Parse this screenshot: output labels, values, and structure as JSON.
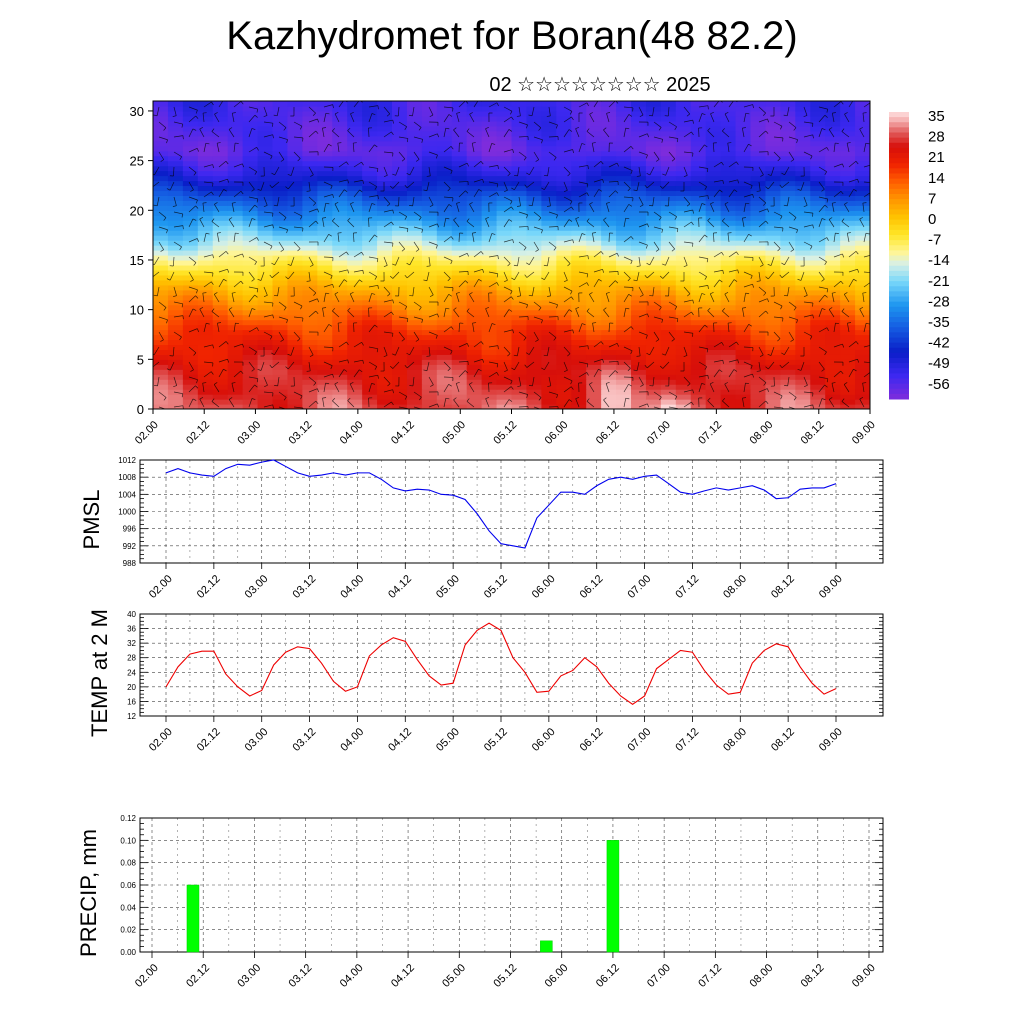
{
  "title": "Kazhydromet for Boran(48 82.2)",
  "subtitle": "02 ☆☆☆☆☆☆☆☆ 2025",
  "x_tick_labels": [
    "02.00",
    "02.12",
    "03.00",
    "03.12",
    "04.00",
    "04.12",
    "05.00",
    "05.12",
    "06.00",
    "06.12",
    "07.00",
    "07.12",
    "08.00",
    "08.12",
    "09.00"
  ],
  "chart_data": [
    {
      "type": "heatmap",
      "name": "temperature-wind-cross-section",
      "y_ticks": [
        0,
        5,
        10,
        15,
        20,
        25,
        30
      ],
      "ylim": [
        0,
        31
      ],
      "colorbar_labels": [
        "35",
        "28",
        "21",
        "14",
        "7",
        "0",
        "-7",
        "-14",
        "-21",
        "-28",
        "-35",
        "-42",
        "-49",
        "-56"
      ],
      "colorbar_range": [
        -60,
        38
      ],
      "bands_by_height": [
        {
          "height": 0,
          "value": 30
        },
        {
          "height": 4,
          "value": 26
        },
        {
          "height": 8,
          "value": 18
        },
        {
          "height": 12,
          "value": 5
        },
        {
          "height": 15,
          "value": -8
        },
        {
          "height": 16.5,
          "value": -16
        },
        {
          "height": 18.5,
          "value": -25
        },
        {
          "height": 21,
          "value": -36
        },
        {
          "height": 23.5,
          "value": -48
        },
        {
          "height": 26,
          "value": -56
        },
        {
          "height": 31,
          "value": -52
        }
      ],
      "hot_spots": [
        {
          "time": 4.5,
          "value": 35
        },
        {
          "time": 5.05,
          "value": 37
        },
        {
          "time": 3.0,
          "value": 31
        }
      ],
      "overlay": "wind barbs"
    },
    {
      "type": "line",
      "ylabel": "PMSL",
      "ylim": [
        988,
        1012
      ],
      "y_ticks": [
        988,
        992,
        996,
        1000,
        1004,
        1008,
        1012
      ],
      "color": "#0000ee",
      "x_start": 0.0,
      "x_step": 0.125,
      "values": [
        1009,
        1010,
        1009,
        1008.5,
        1008.2,
        1010,
        1011,
        1010.8,
        1011.5,
        1012,
        1010.5,
        1009,
        1008.2,
        1008.5,
        1009,
        1008.5,
        1009,
        1009,
        1007.5,
        1005.5,
        1004.8,
        1005.2,
        1005,
        1004,
        1003.8,
        1002.8,
        999.5,
        995.5,
        992.5,
        992,
        991.5,
        998.5,
        1001.5,
        1004.5,
        1004.5,
        1004,
        1006,
        1007.5,
        1008,
        1007.5,
        1008.2,
        1008.5,
        1006.5,
        1004.5,
        1004,
        1004.8,
        1005.5,
        1005,
        1005.5,
        1006,
        1005,
        1003,
        1003.2,
        1005.2,
        1005.5,
        1005.5,
        1006.5
      ]
    },
    {
      "type": "line",
      "ylabel": "TEMP at 2 M",
      "ylim": [
        12,
        40
      ],
      "y_ticks": [
        12,
        16,
        20,
        24,
        28,
        32,
        36,
        40
      ],
      "color": "#ee0000",
      "x_start": 0.0,
      "x_step": 0.125,
      "values": [
        20,
        25.5,
        29,
        29.8,
        29.8,
        23.5,
        20,
        17.5,
        19,
        26,
        29.5,
        31,
        30.5,
        26.5,
        21.5,
        18.8,
        20,
        28.5,
        31.5,
        33.5,
        32.5,
        27.5,
        23,
        20.5,
        21,
        31.5,
        35.5,
        37.5,
        35.5,
        28,
        24,
        18.5,
        18.8,
        23,
        24.5,
        28,
        25.5,
        21,
        17.5,
        15.2,
        17.5,
        25,
        27.5,
        30,
        29.5,
        24.5,
        20.5,
        18,
        18.5,
        26.5,
        30,
        31.8,
        31,
        25.5,
        21,
        18,
        19.5
      ]
    },
    {
      "type": "bar",
      "ylabel": "PRECIP, mm",
      "ylim": [
        0,
        0.12
      ],
      "y_ticks": [
        0.0,
        0.02,
        0.04,
        0.06,
        0.08,
        0.1,
        0.12
      ],
      "y_tick_labels": [
        "0.00",
        "0.02",
        "0.04",
        "0.06",
        "0.08",
        "0.10",
        "0.12"
      ],
      "color": "#00ff00",
      "bars": [
        {
          "x": 0.4,
          "value": 0.06
        },
        {
          "x": 3.85,
          "value": 0.01
        },
        {
          "x": 4.5,
          "value": 0.1
        }
      ]
    }
  ]
}
